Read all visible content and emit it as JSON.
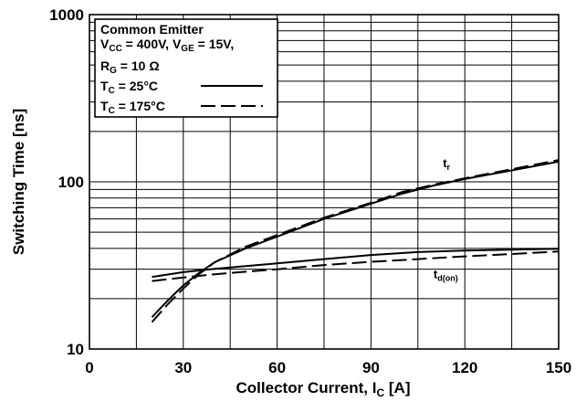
{
  "chart_data": {
    "type": "line",
    "x_axis": {
      "label": "Collector Current, I",
      "label_sub": "C",
      "label_suffix": " [A]",
      "min": 0,
      "max": 150,
      "ticks": [
        0,
        30,
        60,
        90,
        120,
        150
      ],
      "tick_labels": [
        "0",
        "30",
        "60",
        "90",
        "120",
        "150"
      ]
    },
    "y_axis": {
      "label": "Switching Time [ns]",
      "scale": "log",
      "min": 10,
      "max": 1000,
      "ticks": [
        10,
        100,
        1000
      ],
      "tick_labels": [
        "10",
        "100",
        "1000"
      ]
    },
    "grid": true,
    "legend": {
      "placement": "top-left",
      "heading": "Common Emitter",
      "condition_line1": {
        "a_main": "V",
        "a_sub": "CC",
        "a_value": " = 400V, ",
        "b_main": "V",
        "b_sub": "GE",
        "b_value": " = 15V,"
      },
      "condition_line2": {
        "main": "R",
        "sub": "G",
        "value": " = 10 Ω"
      },
      "entries": [
        {
          "main": "T",
          "sub": "C",
          "value": " = 25°C",
          "style": "solid"
        },
        {
          "main": "T",
          "sub": "C",
          "value": " = 175°C",
          "style": "dashed"
        }
      ]
    },
    "annotations": [
      {
        "main": "t",
        "sub": "r",
        "x": 113,
        "y": 130
      },
      {
        "main": "t",
        "sub": "d(on)",
        "x": 110,
        "y": 30
      }
    ],
    "series": [
      {
        "curve": "tr",
        "style": "solid",
        "x": [
          20,
          25,
          30,
          35,
          40,
          50,
          60,
          75,
          90,
          100,
          110,
          120,
          135,
          150
        ],
        "y": [
          15.5,
          19.5,
          24,
          28.5,
          33,
          40,
          47,
          60,
          74,
          85,
          95,
          104,
          117,
          132
        ]
      },
      {
        "curve": "tr",
        "style": "dashed",
        "x": [
          20,
          25,
          30,
          35,
          40,
          50,
          60,
          75,
          90,
          100,
          110,
          120,
          135,
          150
        ],
        "y": [
          14.5,
          18.5,
          23,
          28,
          33,
          41,
          48,
          61,
          75,
          87,
          96,
          105,
          119,
          135
        ]
      },
      {
        "curve": "td_on",
        "style": "solid",
        "x": [
          20,
          30,
          40,
          50,
          60,
          75,
          90,
          105,
          120,
          135,
          150
        ],
        "y": [
          27,
          28.8,
          30.2,
          31.3,
          32.5,
          34.5,
          36.5,
          38,
          38.8,
          39.3,
          39.8
        ]
      },
      {
        "curve": "td_on",
        "style": "dashed",
        "x": [
          20,
          30,
          40,
          50,
          60,
          75,
          90,
          105,
          120,
          135,
          150
        ],
        "y": [
          25.5,
          26.8,
          28,
          29,
          30,
          31.8,
          33.2,
          34.5,
          35.8,
          37,
          38.3
        ]
      }
    ]
  }
}
